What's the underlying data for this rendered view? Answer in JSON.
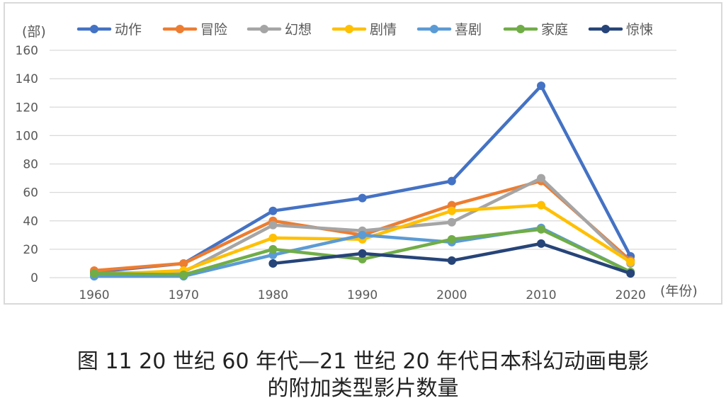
{
  "chart_data": {
    "type": "line",
    "title": "",
    "ylabel": "(部)",
    "xlabel": "(年份)",
    "x": [
      "1960",
      "1970",
      "1980",
      "1990",
      "2000",
      "2010",
      "2020"
    ],
    "ylim": [
      0,
      160
    ],
    "yticks": [
      0,
      20,
      40,
      60,
      80,
      100,
      120,
      140,
      160
    ],
    "grid": true,
    "legend_position": "top",
    "series": [
      {
        "name": "动作",
        "color": "#4472C4",
        "values": [
          4,
          10,
          47,
          56,
          68,
          135,
          15
        ]
      },
      {
        "name": "冒险",
        "color": "#ED7D31",
        "values": [
          5,
          10,
          40,
          30,
          51,
          68,
          12
        ]
      },
      {
        "name": "幻想",
        "color": "#A5A5A5",
        "values": [
          3,
          4,
          37,
          33,
          39,
          70,
          10
        ]
      },
      {
        "name": "剧情",
        "color": "#FFC000",
        "values": [
          2,
          5,
          28,
          27,
          47,
          51,
          11
        ]
      },
      {
        "name": "喜剧",
        "color": "#5B9BD5",
        "values": [
          1,
          1,
          16,
          30,
          25,
          35,
          4
        ]
      },
      {
        "name": "家庭",
        "color": "#70AD47",
        "values": [
          3,
          2,
          20,
          13,
          27,
          34,
          4
        ]
      },
      {
        "name": "惊悚",
        "color": "#264478",
        "values": [
          null,
          null,
          10,
          17,
          12,
          24,
          3
        ]
      }
    ]
  },
  "caption": {
    "line1": "图 11  20 世纪 60 年代—21 世纪 20 年代日本科幻动画电影",
    "line2": "的附加类型影片数量"
  }
}
